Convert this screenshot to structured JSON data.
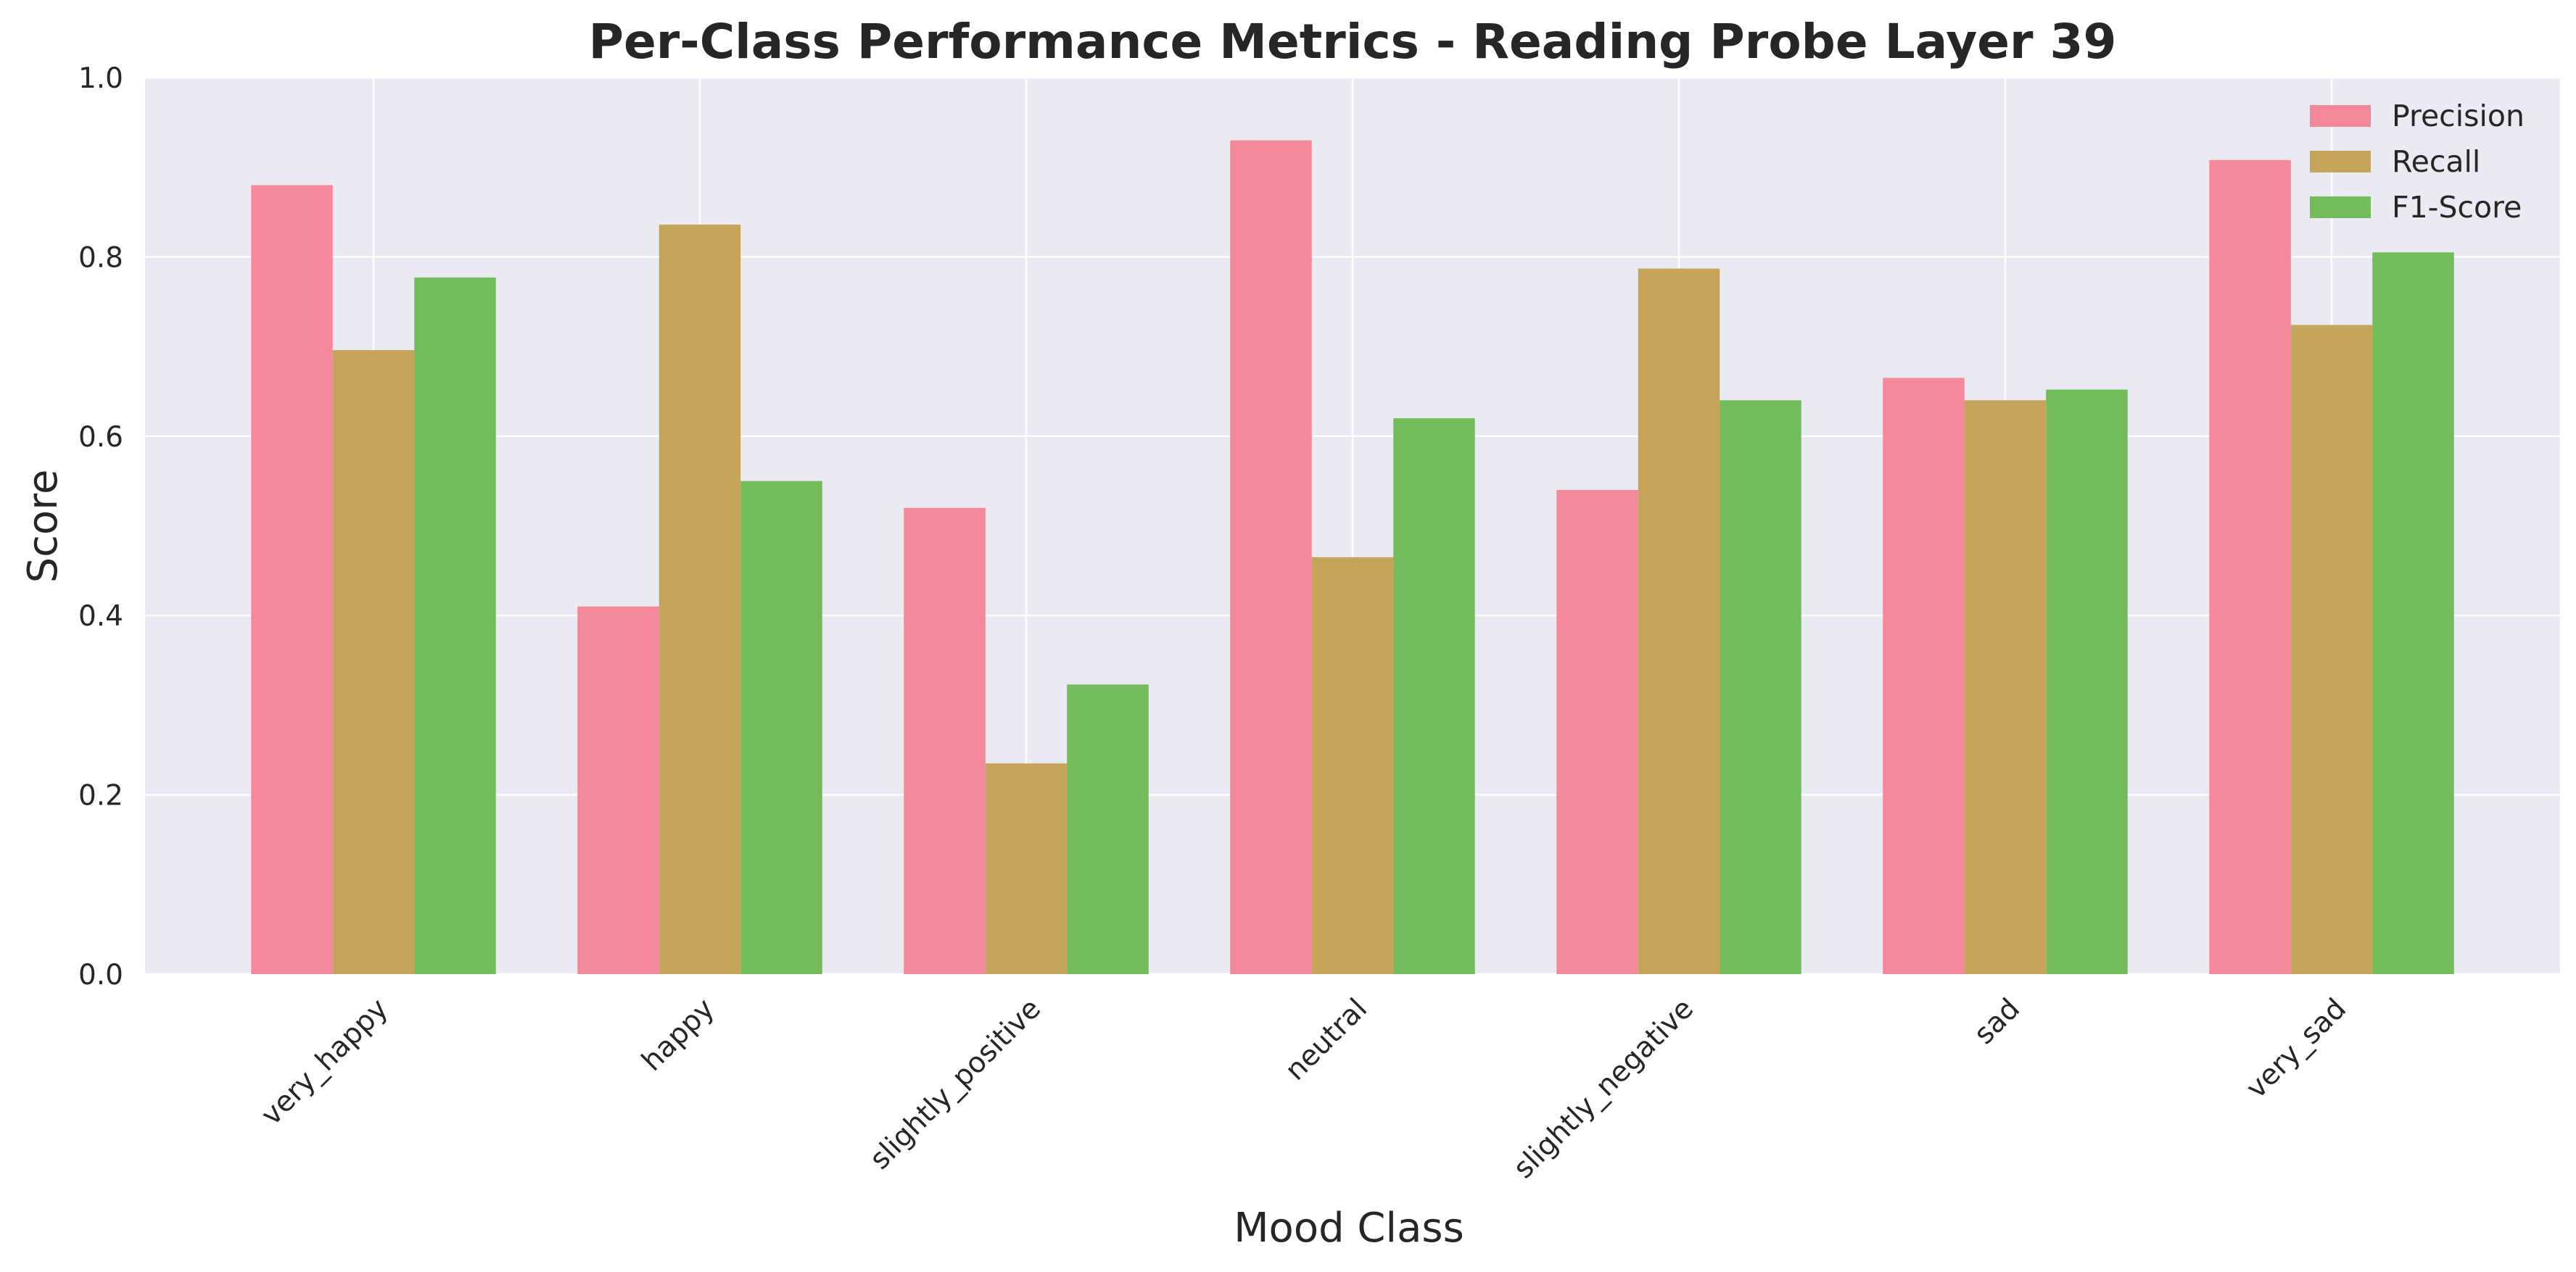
{
  "chart_data": {
    "type": "bar",
    "title": "Per-Class Performance Metrics - Reading Probe Layer 39",
    "xlabel": "Mood Class",
    "ylabel": "Score",
    "ylim": [
      0,
      1.0
    ],
    "yticks": [
      "0.0",
      "0.2",
      "0.4",
      "0.6",
      "0.8",
      "1.0"
    ],
    "categories": [
      "very_happy",
      "happy",
      "slightly_positive",
      "neutral",
      "slightly_negative",
      "sad",
      "very_sad"
    ],
    "series": [
      {
        "name": "Precision",
        "color": "#f4899b",
        "values": [
          0.88,
          0.41,
          0.52,
          0.93,
          0.54,
          0.665,
          0.908
        ]
      },
      {
        "name": "Recall",
        "color": "#c4a55a",
        "values": [
          0.696,
          0.836,
          0.235,
          0.465,
          0.787,
          0.64,
          0.724
        ]
      },
      {
        "name": "F1-Score",
        "color": "#72bc5c",
        "values": [
          0.777,
          0.55,
          0.323,
          0.62,
          0.64,
          0.652,
          0.805
        ]
      }
    ],
    "grid": true,
    "legend_position": "top-right",
    "plot_background": "#eaeaf2"
  }
}
